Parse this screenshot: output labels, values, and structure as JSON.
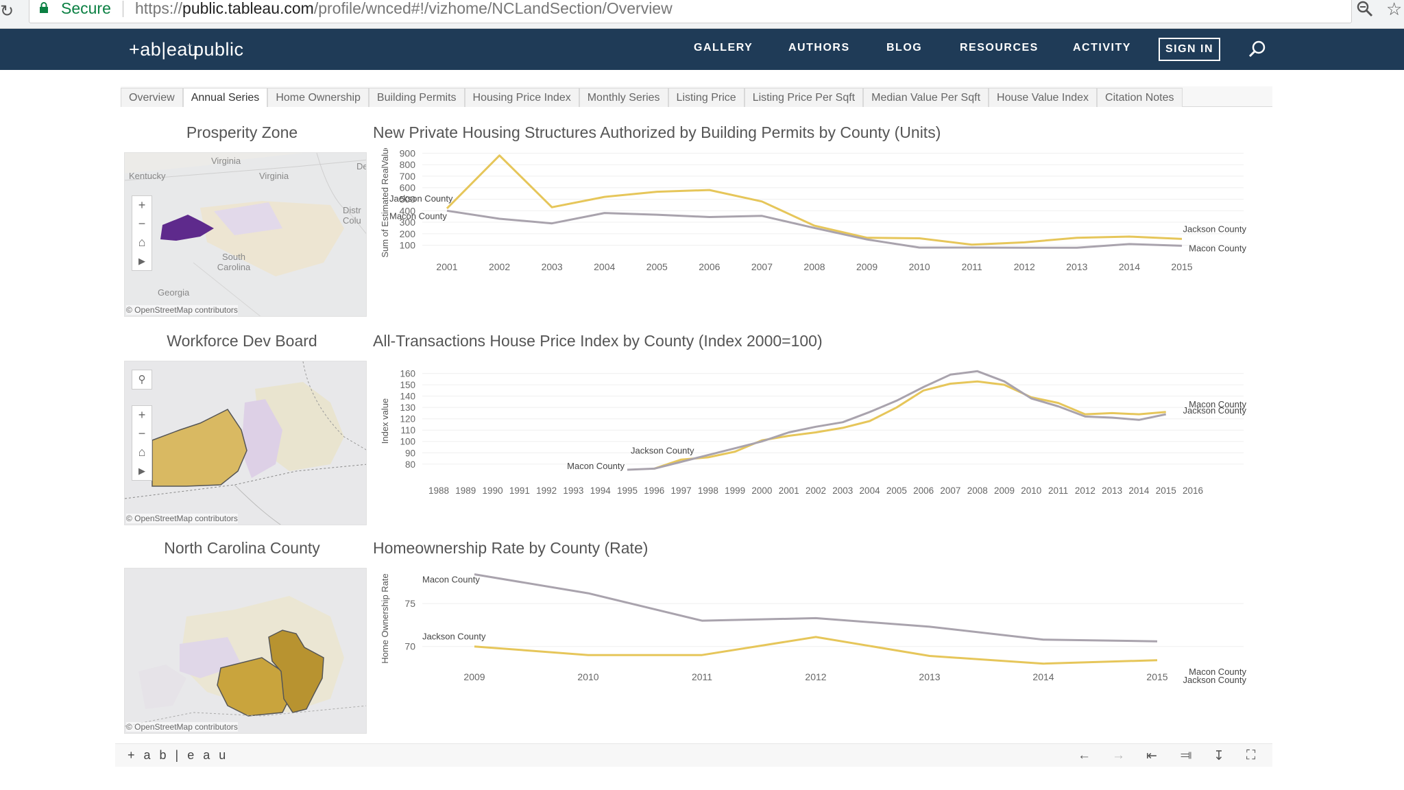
{
  "browser": {
    "secure_label": "Secure",
    "url_prefix": "https://",
    "url_host": "public.tableau.com",
    "url_path": "/profile/wnced#!/vizhome/NCLandSection/Overview"
  },
  "nav": {
    "logo": "+ab|eau public",
    "items": [
      "GALLERY",
      "AUTHORS",
      "BLOG",
      "RESOURCES",
      "ACTIVITY"
    ],
    "signin": "SIGN IN"
  },
  "tabs": [
    {
      "label": "Overview",
      "active": false
    },
    {
      "label": "Annual Series",
      "active": true
    },
    {
      "label": "Home Ownership",
      "active": false
    },
    {
      "label": "Building Permits",
      "active": false
    },
    {
      "label": "Housing Price Index",
      "active": false
    },
    {
      "label": "Monthly Series",
      "active": false
    },
    {
      "label": "Listing Price",
      "active": false
    },
    {
      "label": "Listing Price Per Sqft",
      "active": false
    },
    {
      "label": "Median Value Per Sqft",
      "active": false
    },
    {
      "label": "House Value Index",
      "active": false
    },
    {
      "label": "Citation Notes",
      "active": false
    }
  ],
  "maps": [
    {
      "title": "Prosperity Zone",
      "credit": "© OpenStreetMap contributors",
      "labels": [
        "Kentucky",
        "Virginia",
        "Virginia",
        "South Carolina",
        "Georgia",
        "Distr Colu",
        "De"
      ]
    },
    {
      "title": "Workforce Dev Board",
      "credit": "© OpenStreetMap contributors",
      "labels": []
    },
    {
      "title": "North Carolina County",
      "credit": "© OpenStreetMap contributors",
      "labels": []
    }
  ],
  "colors": {
    "jackson": "#e6c65a",
    "macon": "#a9a3ad",
    "nav_bg": "#1f3b57"
  },
  "footer": {
    "brand": "+ a b | e a u"
  },
  "chart_data": [
    {
      "type": "line",
      "title": "New Private Housing Structures Authorized by Building Permits by County (Units)",
      "ylabel": "Sum of Estimated RealValue",
      "x": [
        "2001",
        "2002",
        "2003",
        "2004",
        "2005",
        "2006",
        "2007",
        "2008",
        "2009",
        "2010",
        "2011",
        "2012",
        "2013",
        "2014",
        "2015"
      ],
      "yticks": [
        100,
        200,
        300,
        400,
        500,
        600,
        700,
        800,
        900
      ],
      "ylim": [
        50,
        920
      ],
      "series": [
        {
          "name": "Jackson County",
          "color": "#e6c65a",
          "values": [
            420,
            880,
            430,
            520,
            565,
            580,
            480,
            270,
            165,
            160,
            105,
            125,
            165,
            175,
            155
          ]
        },
        {
          "name": "Macon County",
          "color": "#a9a3ad",
          "values": [
            400,
            330,
            290,
            380,
            365,
            345,
            355,
            250,
            150,
            80,
            80,
            78,
            78,
            110,
            95
          ]
        }
      ],
      "start_labels": {
        "Jackson County": "Jackson County",
        "Macon County": "Macon County"
      },
      "end_labels": {
        "Jackson County": "Jackson County",
        "Macon County": "Macon County"
      }
    },
    {
      "type": "line",
      "title": "All-Transactions House Price Index by County (Index 2000=100)",
      "ylabel": "Index value",
      "x": [
        "1988",
        "1989",
        "1990",
        "1991",
        "1992",
        "1993",
        "1994",
        "1995",
        "1996",
        "1997",
        "1998",
        "1999",
        "2000",
        "2001",
        "2002",
        "2003",
        "2004",
        "2005",
        "2006",
        "2007",
        "2008",
        "2009",
        "2010",
        "2011",
        "2012",
        "2013",
        "2014",
        "2015",
        "2016"
      ],
      "yticks": [
        80,
        90,
        100,
        110,
        120,
        130,
        140,
        150,
        160
      ],
      "ylim": [
        72,
        164
      ],
      "series": [
        {
          "name": "Jackson County",
          "color": "#e6c65a",
          "values": [
            null,
            null,
            null,
            null,
            null,
            null,
            null,
            null,
            76,
            84,
            86,
            91,
            101,
            105,
            108,
            112,
            118,
            130,
            145,
            151,
            153,
            150,
            139,
            134,
            124,
            125,
            124,
            126,
            null
          ]
        },
        {
          "name": "Macon County",
          "color": "#a9a3ad",
          "values": [
            null,
            null,
            null,
            null,
            null,
            null,
            null,
            75,
            76,
            82,
            88,
            94,
            100,
            108,
            113,
            117,
            126,
            136,
            148,
            159,
            162,
            153,
            138,
            131,
            122,
            121,
            119,
            124,
            null
          ]
        }
      ],
      "start_labels": {
        "Jackson County": "Jackson County",
        "Macon County": "Macon County"
      },
      "end_labels": {
        "Jackson County": "Jackson County",
        "Macon County": "Macon County"
      }
    },
    {
      "type": "line",
      "title": "Homeownership Rate by County (Rate)",
      "ylabel": "Home Ownership Rate",
      "x": [
        "2009",
        "2010",
        "2011",
        "2012",
        "2013",
        "2014",
        "2015"
      ],
      "yticks": [
        70,
        75
      ],
      "ylim": [
        67.5,
        79
      ],
      "series": [
        {
          "name": "Macon County",
          "color": "#a9a3ad",
          "values": [
            78.4,
            76.2,
            73.0,
            73.3,
            72.3,
            70.8,
            70.6
          ]
        },
        {
          "name": "Jackson County",
          "color": "#e6c65a",
          "values": [
            70.0,
            69.0,
            69.0,
            71.1,
            68.9,
            68.0,
            68.4
          ]
        }
      ],
      "start_labels": {
        "Jackson County": "Jackson County",
        "Macon County": "Macon County"
      },
      "end_labels": {
        "Jackson County": "Jackson County",
        "Macon County": "Macon County"
      }
    }
  ]
}
